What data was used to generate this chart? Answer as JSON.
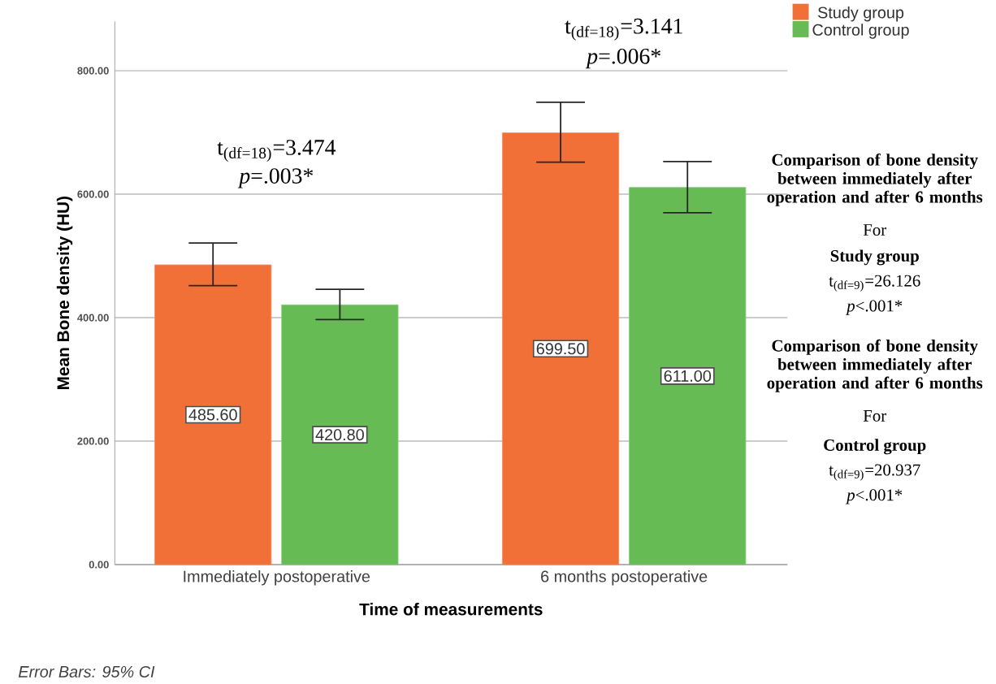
{
  "chart_data": {
    "type": "bar",
    "xlabel": "Time of measurements",
    "ylabel": "Mean Bone density (HU)",
    "categories": [
      "Immediately postoperative",
      "6 months postoperative"
    ],
    "series": [
      {
        "name": "Study group",
        "color": "#f07038",
        "values": [
          485.6,
          699.5
        ],
        "value_labels": [
          "485.60",
          "699.50"
        ],
        "errors": [
          [
            452,
            521
          ],
          [
            652,
            749
          ]
        ]
      },
      {
        "name": "Control group",
        "color": "#66bb55",
        "values": [
          420.8,
          611.0
        ],
        "value_labels": [
          "420.80",
          "611.00"
        ],
        "errors": [
          [
            397,
            446
          ],
          [
            570,
            653
          ]
        ]
      }
    ],
    "ylim": [
      0,
      880
    ],
    "yticks": [
      {
        "value": 0,
        "label": "0.00"
      },
      {
        "value": 200,
        "label": "200.00"
      },
      {
        "value": 400,
        "label": "400.00"
      },
      {
        "value": 600,
        "label": "600.00"
      },
      {
        "value": 800,
        "label": "800.00"
      }
    ],
    "grid": "y",
    "legend": "top right",
    "annotations": [
      "t$_{(df=18)}$=3.474",
      "*p*=.003*",
      "t$_{(df=18)}$=3.141",
      "*p*=.006*",
      "Comparison of bone density between immediately after operation and after 6 months",
      "For",
      "Study group",
      "t$_{(df=9)}$=26.126",
      "*p*<.001*",
      "Comparison of bone density between immediately after operation and after 6 months",
      "For",
      "Control group",
      "t$_{(df=9)}$=20.937",
      "*p*<.001*",
      "Error Bars: 95% CI"
    ]
  }
}
